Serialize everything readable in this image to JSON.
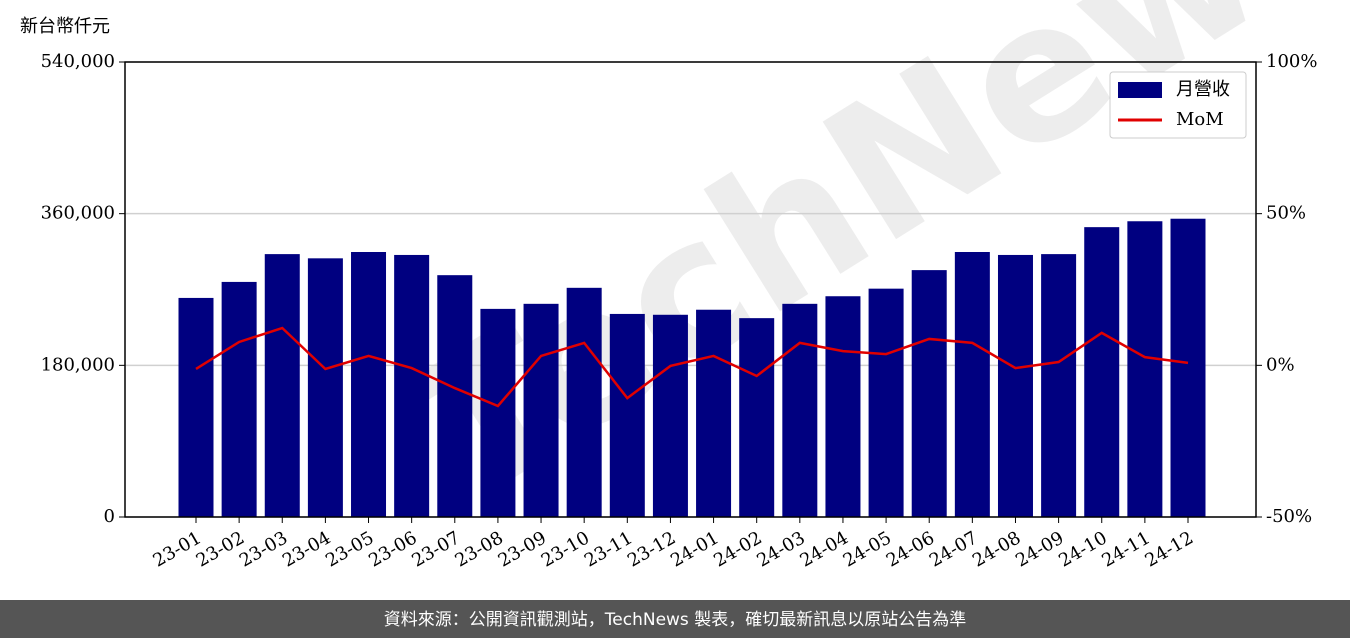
{
  "chart_data": {
    "type": "bar_line",
    "y_label": "新台幣仟元",
    "categories": [
      "23-01",
      "23-02",
      "23-03",
      "23-04",
      "23-05",
      "23-06",
      "23-07",
      "23-08",
      "23-09",
      "23-10",
      "23-11",
      "23-12",
      "24-01",
      "24-02",
      "24-03",
      "24-04",
      "24-05",
      "24-06",
      "24-07",
      "24-08",
      "24-09",
      "24-10",
      "24-11",
      "24-12"
    ],
    "series": [
      {
        "name": "月營收",
        "color": "#000080",
        "type": "bar",
        "values": [
          260000,
          279000,
          312000,
          307000,
          314500,
          311000,
          287000,
          247000,
          253000,
          272000,
          241000,
          240000,
          246000,
          236000,
          253000,
          262000,
          271000,
          293000,
          314500,
          311000,
          312000,
          344000,
          351000,
          354000
        ]
      },
      {
        "name": "MoM",
        "color": "#e00000",
        "type": "line",
        "axis": "y2",
        "values": [
          -1.2,
          7.7,
          12.3,
          -1.2,
          3.1,
          -0.9,
          -7.5,
          -13.4,
          3.1,
          7.4,
          -10.8,
          -0.2,
          3.1,
          -3.5,
          7.4,
          4.7,
          3.7,
          8.7,
          7.4,
          -0.9,
          1.1,
          10.7,
          2.7,
          0.8
        ]
      }
    ],
    "ylim": [
      0,
      540000
    ],
    "yticks": [
      0,
      {
        "value": 180000,
        "label": "180,000"
      },
      {
        "value": 360000,
        "label": "360,000"
      },
      {
        "value": 540000,
        "label": "540,000"
      }
    ],
    "y2lim": [
      -50,
      100
    ],
    "y2ticks": [
      {
        "value": -50,
        "label": "-50%"
      },
      {
        "value": 0,
        "label": "0%"
      },
      {
        "value": 50,
        "label": "50%"
      },
      {
        "value": 100,
        "label": "100%"
      }
    ],
    "grid": true,
    "legend": "upper right",
    "watermark": "TechNews",
    "footer": "資料來源：公開資訊觀測站，TechNews 製表，確切最新訊息以原站公告為準"
  }
}
